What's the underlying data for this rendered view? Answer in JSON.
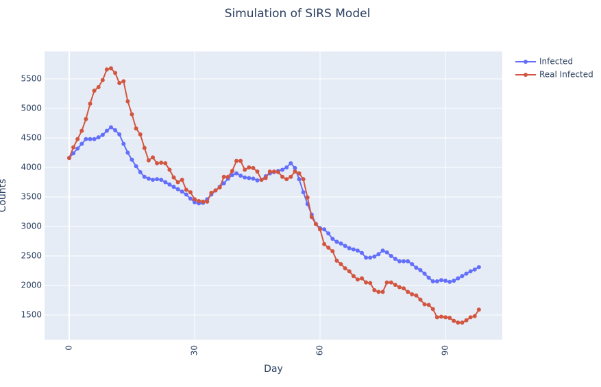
{
  "chart_data": {
    "type": "line",
    "title": "Simulation of SIRS Model",
    "x_label": "Day",
    "y_label": "Counts",
    "x": [
      0,
      1,
      2,
      3,
      4,
      5,
      6,
      7,
      8,
      9,
      10,
      11,
      12,
      13,
      14,
      15,
      16,
      17,
      18,
      19,
      20,
      21,
      22,
      23,
      24,
      25,
      26,
      27,
      28,
      29,
      30,
      31,
      32,
      33,
      34,
      35,
      36,
      37,
      38,
      39,
      40,
      41,
      42,
      43,
      44,
      45,
      46,
      47,
      48,
      49,
      50,
      51,
      52,
      53,
      54,
      55,
      56,
      57,
      58,
      59,
      60,
      61,
      62,
      63,
      64,
      65,
      66,
      67,
      68,
      69,
      70,
      71,
      72,
      73,
      74,
      75,
      76,
      77,
      78,
      79,
      80,
      81,
      82,
      83,
      84,
      85,
      86,
      87,
      88,
      89,
      90,
      91,
      92,
      93,
      94,
      95,
      96,
      97,
      98
    ],
    "series": [
      {
        "name": "Infected",
        "color": "#636efa",
        "values": [
          4160,
          4240,
          4320,
          4400,
          4480,
          4480,
          4480,
          4510,
          4550,
          4620,
          4680,
          4630,
          4560,
          4400,
          4250,
          4130,
          4020,
          3920,
          3840,
          3810,
          3790,
          3800,
          3790,
          3750,
          3710,
          3670,
          3630,
          3590,
          3540,
          3470,
          3410,
          3390,
          3400,
          3460,
          3540,
          3610,
          3670,
          3730,
          3810,
          3870,
          3900,
          3860,
          3830,
          3820,
          3810,
          3780,
          3790,
          3850,
          3900,
          3920,
          3940,
          3960,
          4000,
          4070,
          3990,
          3800,
          3580,
          3380,
          3200,
          3040,
          2970,
          2950,
          2880,
          2790,
          2740,
          2710,
          2670,
          2630,
          2610,
          2590,
          2550,
          2470,
          2470,
          2490,
          2530,
          2590,
          2560,
          2500,
          2450,
          2410,
          2410,
          2410,
          2360,
          2300,
          2260,
          2200,
          2130,
          2070,
          2070,
          2090,
          2080,
          2060,
          2080,
          2120,
          2160,
          2200,
          2240,
          2270,
          2310
        ]
      },
      {
        "name": "Real Infected",
        "color": "#d2553f",
        "values": [
          4160,
          4340,
          4480,
          4620,
          4820,
          5080,
          5300,
          5360,
          5480,
          5660,
          5680,
          5600,
          5430,
          5460,
          5120,
          4900,
          4660,
          4560,
          4330,
          4120,
          4170,
          4070,
          4080,
          4070,
          3960,
          3830,
          3750,
          3790,
          3620,
          3580,
          3460,
          3430,
          3420,
          3420,
          3570,
          3610,
          3660,
          3840,
          3840,
          3940,
          4110,
          4110,
          3960,
          4000,
          3990,
          3930,
          3790,
          3820,
          3930,
          3930,
          3920,
          3840,
          3800,
          3840,
          3930,
          3900,
          3800,
          3490,
          3160,
          3040,
          2950,
          2700,
          2640,
          2580,
          2420,
          2360,
          2290,
          2240,
          2160,
          2100,
          2120,
          2050,
          2040,
          1920,
          1890,
          1890,
          2050,
          2050,
          2010,
          1970,
          1950,
          1890,
          1850,
          1830,
          1760,
          1680,
          1670,
          1600,
          1460,
          1470,
          1460,
          1450,
          1400,
          1370,
          1370,
          1410,
          1460,
          1480,
          1590
        ]
      }
    ],
    "xlim": [
      -5.9,
      103.6
    ],
    "xticks": [
      0,
      30,
      60,
      90
    ],
    "ylim": [
      1081,
      5965
    ],
    "yticks": [
      1500,
      2000,
      2500,
      3000,
      3500,
      4000,
      4500,
      5000,
      5500
    ],
    "grid": true,
    "legend": "top-right"
  }
}
